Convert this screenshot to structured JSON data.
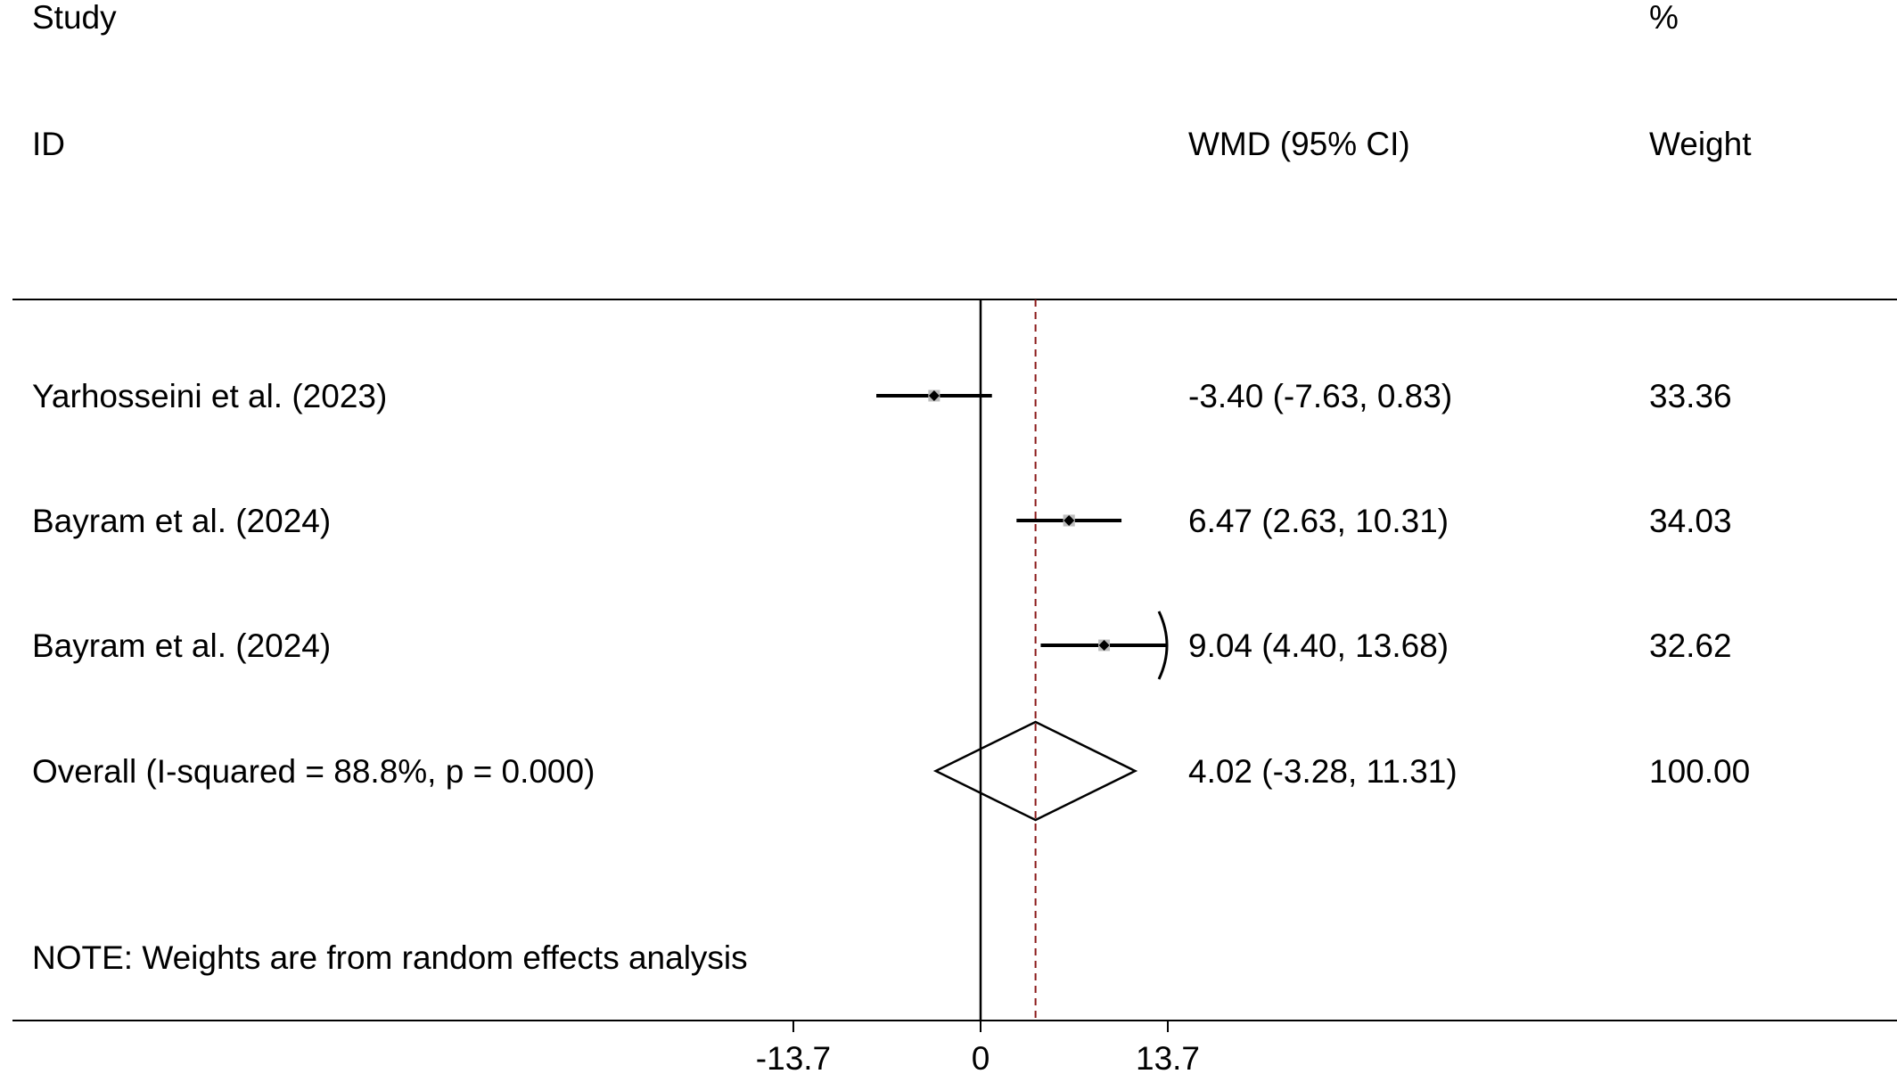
{
  "chart_data": {
    "type": "forest",
    "header": {
      "study_top": "Study",
      "study_bottom": "ID",
      "pct_top": "%",
      "pct_bottom": "Weight",
      "effect": "WMD (95% CI)"
    },
    "studies": [
      {
        "label": "Yarhosseini et al. (2023)",
        "estimate": -3.4,
        "lower": -7.63,
        "upper": 0.83,
        "ci_text": "-3.40 (-7.63, 0.83)",
        "weight_text": "33.36",
        "weight": 33.36,
        "arrow_right": false
      },
      {
        "label": "Bayram et al. (2024)",
        "estimate": 6.47,
        "lower": 2.63,
        "upper": 10.31,
        "ci_text": "6.47 (2.63, 10.31)",
        "weight_text": "34.03",
        "weight": 34.03,
        "arrow_right": false
      },
      {
        "label": "Bayram et al. (2024)",
        "estimate": 9.04,
        "lower": 4.4,
        "upper": 13.68,
        "ci_text": "9.04 (4.40, 13.68)",
        "weight_text": "32.62",
        "weight": 32.62,
        "arrow_right": true
      }
    ],
    "overall": {
      "label": "Overall  (I-squared = 88.8%, p = 0.000)",
      "estimate": 4.02,
      "lower": -3.28,
      "upper": 11.31,
      "ci_text": "4.02 (-3.28, 11.31)",
      "weight_text": "100.00"
    },
    "note": "NOTE: Weights are from random effects analysis",
    "x_ticks": [
      {
        "value": -13.7,
        "label": "-13.7"
      },
      {
        "value": 0,
        "label": "0"
      },
      {
        "value": 13.7,
        "label": "13.7"
      }
    ],
    "null_value": 0,
    "colors": {
      "line": "#000000",
      "pooled_line": "#8b1a1a",
      "marker": "#000000",
      "weight_box": "#bdbdbd"
    }
  }
}
